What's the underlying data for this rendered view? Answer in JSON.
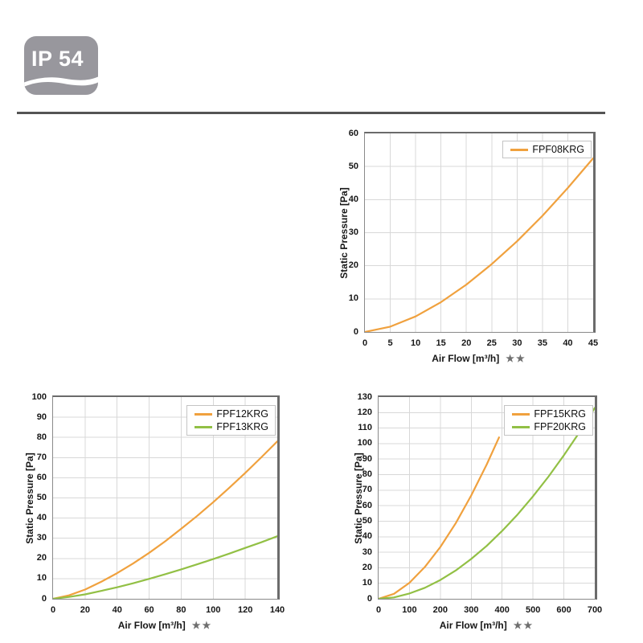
{
  "badge": {
    "label": "IP 54"
  },
  "chart_data": [
    {
      "id": "fpf08",
      "type": "line",
      "title": "",
      "xlabel": "Air Flow [m³/h]",
      "xlabel_suffix": "★★",
      "ylabel": "Static Pressure [Pa]",
      "xlim": [
        0,
        45
      ],
      "ylim": [
        0,
        60
      ],
      "x_ticks": [
        0,
        5,
        10,
        15,
        20,
        25,
        30,
        35,
        40,
        45
      ],
      "y_ticks": [
        0,
        10,
        20,
        30,
        40,
        50,
        60
      ],
      "grid": true,
      "legend_position": "top-right",
      "series": [
        {
          "name": "FPF08KRG",
          "color": "#F0A13E",
          "points": [
            [
              0,
              0
            ],
            [
              5,
              1.6
            ],
            [
              10,
              4.7
            ],
            [
              15,
              9.0
            ],
            [
              20,
              14.3
            ],
            [
              25,
              20.5
            ],
            [
              30,
              27.4
            ],
            [
              35,
              35.1
            ],
            [
              40,
              43.5
            ],
            [
              45,
              52.5
            ]
          ]
        }
      ]
    },
    {
      "id": "fpf12_13",
      "type": "line",
      "title": "",
      "xlabel": "Air Flow [m³/h]",
      "xlabel_suffix": "★★",
      "ylabel": "Static Pressure [Pa]",
      "xlim": [
        0,
        140
      ],
      "ylim": [
        0,
        100
      ],
      "x_ticks": [
        0,
        20,
        40,
        60,
        80,
        100,
        120,
        140
      ],
      "y_ticks": [
        0,
        10,
        20,
        30,
        40,
        50,
        60,
        70,
        80,
        90,
        100
      ],
      "grid": true,
      "legend_position": "top-right",
      "series": [
        {
          "name": "FPF12KRG",
          "color": "#F0A13E",
          "points": [
            [
              0,
              0
            ],
            [
              10,
              1.7
            ],
            [
              20,
              4.6
            ],
            [
              30,
              8.4
            ],
            [
              40,
              12.7
            ],
            [
              50,
              17.5
            ],
            [
              60,
              22.8
            ],
            [
              70,
              28.5
            ],
            [
              80,
              34.7
            ],
            [
              90,
              41.1
            ],
            [
              100,
              47.9
            ],
            [
              110,
              55.0
            ],
            [
              120,
              62.4
            ],
            [
              130,
              70.1
            ],
            [
              140,
              78.0
            ]
          ]
        },
        {
          "name": "FPF13KRG",
          "color": "#92C045",
          "points": [
            [
              0,
              0
            ],
            [
              10,
              0.9
            ],
            [
              20,
              2.2
            ],
            [
              30,
              3.9
            ],
            [
              40,
              5.7
            ],
            [
              50,
              7.7
            ],
            [
              60,
              9.9
            ],
            [
              70,
              12.2
            ],
            [
              80,
              14.6
            ],
            [
              90,
              17.1
            ],
            [
              100,
              19.7
            ],
            [
              110,
              22.4
            ],
            [
              120,
              25.2
            ],
            [
              130,
              28.0
            ],
            [
              140,
              31.0
            ]
          ]
        }
      ]
    },
    {
      "id": "fpf15_20",
      "type": "line",
      "title": "",
      "xlabel": "Air Flow [m³/h]",
      "xlabel_suffix": "★★",
      "ylabel": "Static Pressure [Pa]",
      "xlim": [
        0,
        700
      ],
      "ylim": [
        0,
        130
      ],
      "x_ticks": [
        0,
        100,
        200,
        300,
        400,
        500,
        600,
        700
      ],
      "y_ticks": [
        0,
        10,
        20,
        30,
        40,
        50,
        60,
        70,
        80,
        90,
        100,
        110,
        120,
        130
      ],
      "grid": true,
      "legend_position": "top-right",
      "series": [
        {
          "name": "FPF15KRG",
          "color": "#F0A13E",
          "points": [
            [
              0,
              0
            ],
            [
              50,
              3.2
            ],
            [
              100,
              10.3
            ],
            [
              150,
              20.5
            ],
            [
              200,
              33.4
            ],
            [
              250,
              48.8
            ],
            [
              300,
              66.6
            ],
            [
              350,
              86.5
            ],
            [
              390,
              104.0
            ]
          ]
        },
        {
          "name": "FPF20KRG",
          "color": "#92C045",
          "points": [
            [
              0,
              0
            ],
            [
              50,
              0.9
            ],
            [
              100,
              3.4
            ],
            [
              150,
              7.1
            ],
            [
              200,
              12.1
            ],
            [
              250,
              18.3
            ],
            [
              300,
              25.7
            ],
            [
              350,
              34.1
            ],
            [
              400,
              43.7
            ],
            [
              450,
              54.3
            ],
            [
              500,
              66.0
            ],
            [
              550,
              78.7
            ],
            [
              600,
              92.5
            ],
            [
              650,
              107.2
            ],
            [
              700,
              123.0
            ]
          ]
        }
      ]
    }
  ]
}
